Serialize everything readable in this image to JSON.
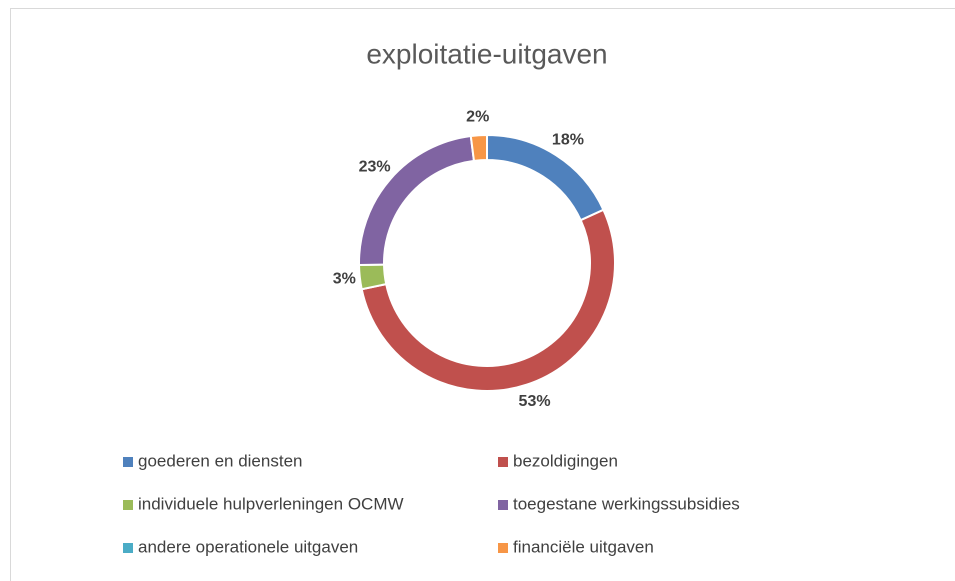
{
  "chart_data": {
    "type": "donut",
    "title": "exploitatie-uitgaven",
    "categories": [
      "goederen en diensten",
      "bezoldigingen",
      "individuele hulpverleningen OCMW",
      "toegestane werkingssubsidies",
      "andere operationele uitgaven",
      "financiële uitgaven"
    ],
    "values": [
      18,
      53,
      3,
      23,
      0,
      2
    ],
    "value_labels": [
      "18%",
      "53%",
      "3%",
      "23%",
      null,
      "2%"
    ],
    "colors": [
      "#4f81bd",
      "#c0504d",
      "#9bbb59",
      "#8064a2",
      "#4bacc6",
      "#f79646"
    ]
  }
}
